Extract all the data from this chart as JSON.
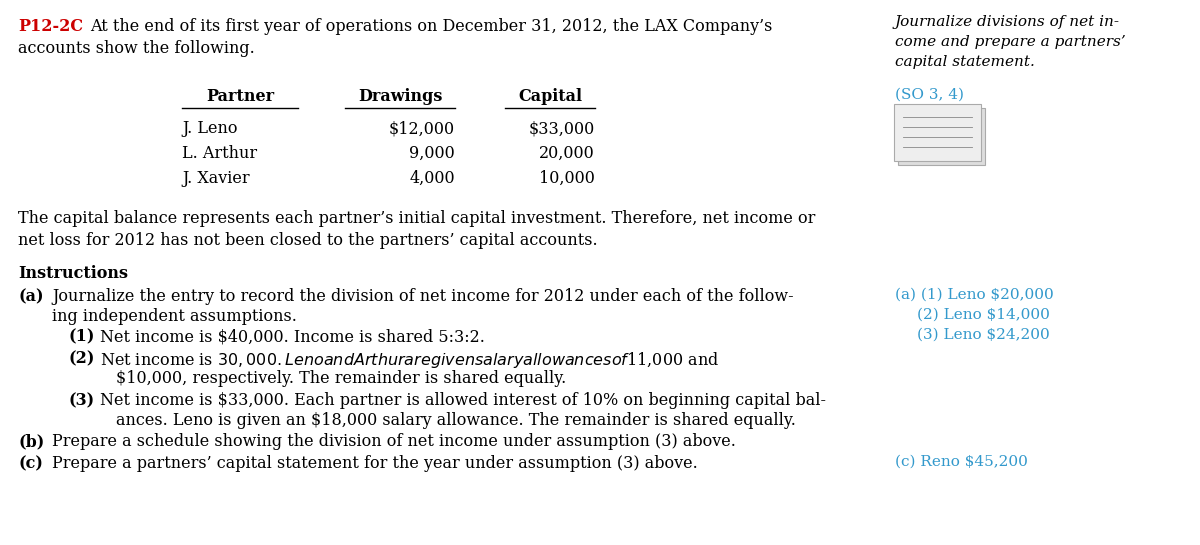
{
  "bg_color": "#ffffff",
  "problem_id": "P12-2C",
  "problem_id_color": "#cc0000",
  "right_header_italic": "Journalize divisions of net in-\ncome and prepare a partners’\ncapital statement.",
  "right_so": "(SO 3, 4)",
  "right_so_color": "#3399cc",
  "table_headers": [
    "Partner",
    "Drawings",
    "Capital"
  ],
  "table_rows": [
    [
      "J. Leno",
      "$12,000",
      "$33,000"
    ],
    [
      "L. Arthur",
      "9,000",
      "20,000"
    ],
    [
      "J. Xavier",
      "4,000",
      "10,000"
    ]
  ],
  "right_answers_a_color": "#3399cc",
  "right_answers_c_color": "#3399cc",
  "font_size_main": 11.5,
  "font_size_right": 11.0
}
